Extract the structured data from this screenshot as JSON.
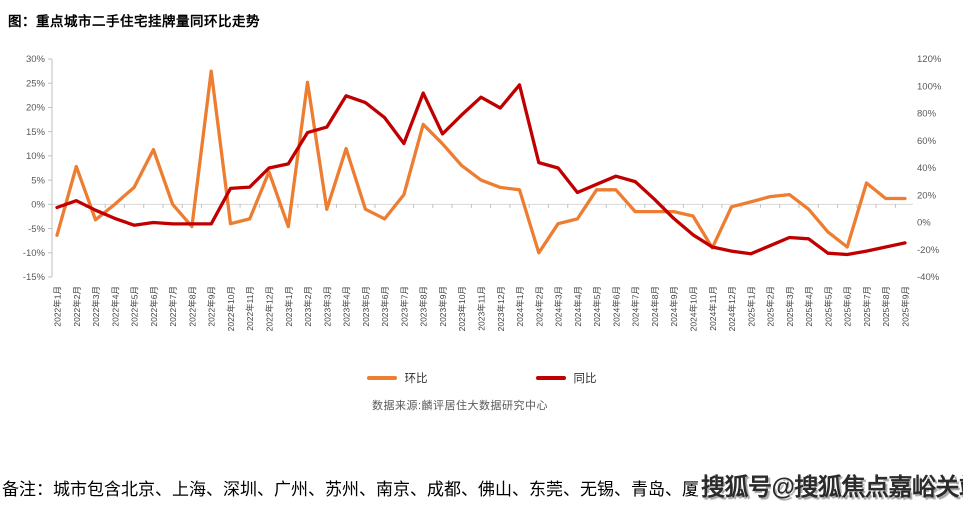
{
  "title": "图：重点城市二手住宅挂牌量同环比走势",
  "legend": [
    {
      "label": "环比",
      "color": "#ED7D31"
    },
    {
      "label": "同比",
      "color": "#C00000"
    }
  ],
  "source": "数据来源:麟评居住大数据研究中心",
  "note": "备注：城市包含北京、上海、深圳、广州、苏州、南京、成都、佛山、东莞、无锡、青岛、厦",
  "watermark": "搜狐号@搜狐焦点嘉峪关站",
  "chart_data": {
    "type": "line",
    "categories": [
      "2022年1月",
      "2022年2月",
      "2022年3月",
      "2022年4月",
      "2022年5月",
      "2022年6月",
      "2022年7月",
      "2022年8月",
      "2022年9月",
      "2022年10月",
      "2022年11月",
      "2022年12月",
      "2023年1月",
      "2023年2月",
      "2023年3月",
      "2023年4月",
      "2023年5月",
      "2023年6月",
      "2023年7月",
      "2023年8月",
      "2023年9月",
      "2023年10月",
      "2023年11月",
      "2023年12月",
      "2024年1月",
      "2024年2月",
      "2024年3月",
      "2024年4月",
      "2024年5月",
      "2024年6月",
      "2024年7月",
      "2024年8月",
      "2024年9月",
      "2024年10月",
      "2024年11月",
      "2024年12月",
      "2025年1月",
      "2025年2月",
      "2025年3月",
      "2025年4月",
      "2025年5月",
      "2025年6月",
      "2025年7月",
      "2025年8月",
      "2025年9月"
    ],
    "series": [
      {
        "name": "环比",
        "axis": "left",
        "color": "#ED7D31",
        "values": [
          -6.4,
          7.8,
          -3.2,
          0,
          3.5,
          11.3,
          0,
          -4.6,
          27.5,
          -4,
          -3,
          6.7,
          -4.6,
          25.2,
          -1,
          11.5,
          -1,
          -3,
          2,
          16.5,
          12.5,
          8,
          5,
          3.5,
          3,
          -10,
          -4,
          -3,
          3,
          3,
          -1.5,
          -1.5,
          -1.5,
          -2.4,
          -9,
          -0.5,
          0.5,
          1.6,
          2,
          -1,
          -5.7,
          -8.8,
          4.4,
          1.2,
          1.2
        ]
      },
      {
        "name": "同比",
        "axis": "right",
        "color": "#C00000",
        "values": [
          11,
          16,
          9,
          3,
          -2,
          0,
          -1,
          -1,
          -1,
          25,
          26,
          40,
          43,
          66,
          70,
          93,
          88,
          77,
          58,
          95,
          65,
          79,
          92,
          84,
          101,
          44,
          40,
          22,
          28,
          34,
          30,
          17,
          3,
          -9,
          -18,
          -21,
          -23,
          -17,
          -11,
          -12,
          -22.5,
          -23.5,
          -21,
          -18,
          -15
        ]
      }
    ],
    "left_axis": {
      "min": -15,
      "max": 30,
      "ticks": [
        "30%",
        "25%",
        "20%",
        "15%",
        "10%",
        "5%",
        "0%",
        "-5%",
        "-10%",
        "-15%"
      ]
    },
    "right_axis": {
      "min": -40,
      "max": 120,
      "ticks": [
        "120%",
        "100%",
        "80%",
        "60%",
        "40%",
        "20%",
        "0%",
        "-20%",
        "-40%"
      ]
    },
    "grid": "zero-line-only",
    "legend_position": "bottom",
    "xlabel": "",
    "ylabel": ""
  }
}
